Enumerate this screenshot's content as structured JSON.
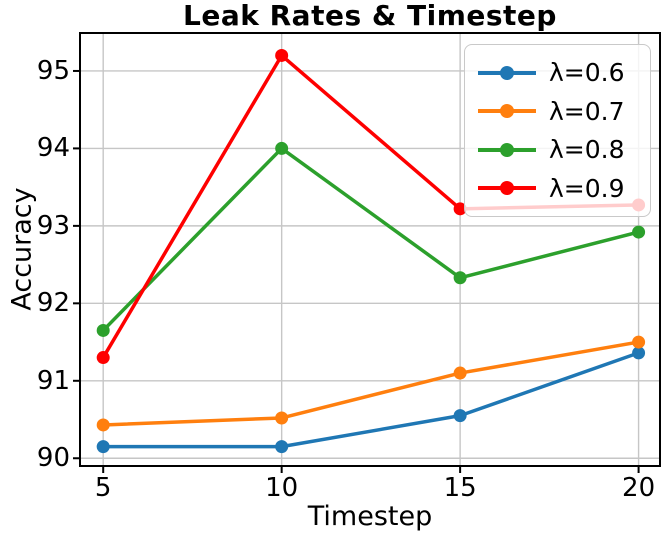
{
  "chart_data": {
    "type": "line",
    "title": "Leak Rates & Timestep",
    "xlabel": "Timestep",
    "ylabel": "Accuracy",
    "x": [
      5,
      10,
      15,
      20
    ],
    "xticks": [
      5,
      10,
      15,
      20
    ],
    "yticks": [
      90,
      91,
      92,
      93,
      94,
      95
    ],
    "xlim": [
      4.35,
      20.6
    ],
    "ylim": [
      89.9,
      95.49
    ],
    "grid": true,
    "legend_position": "upper right",
    "series": [
      {
        "name": "λ=0.6",
        "color": "#1f77b4",
        "values": [
          90.15,
          90.15,
          90.55,
          91.36
        ]
      },
      {
        "name": "λ=0.7",
        "color": "#ff7f0e",
        "values": [
          90.43,
          90.52,
          91.1,
          91.5
        ]
      },
      {
        "name": "λ=0.8",
        "color": "#2ca02c",
        "values": [
          91.65,
          94.0,
          92.33,
          92.92
        ]
      },
      {
        "name": "λ=0.9",
        "color": "#fe0000",
        "values": [
          91.3,
          95.2,
          93.22,
          93.27
        ]
      }
    ],
    "colors": {
      "grid": "#c6c6c6",
      "spine": "#000000",
      "text": "#000000"
    }
  }
}
